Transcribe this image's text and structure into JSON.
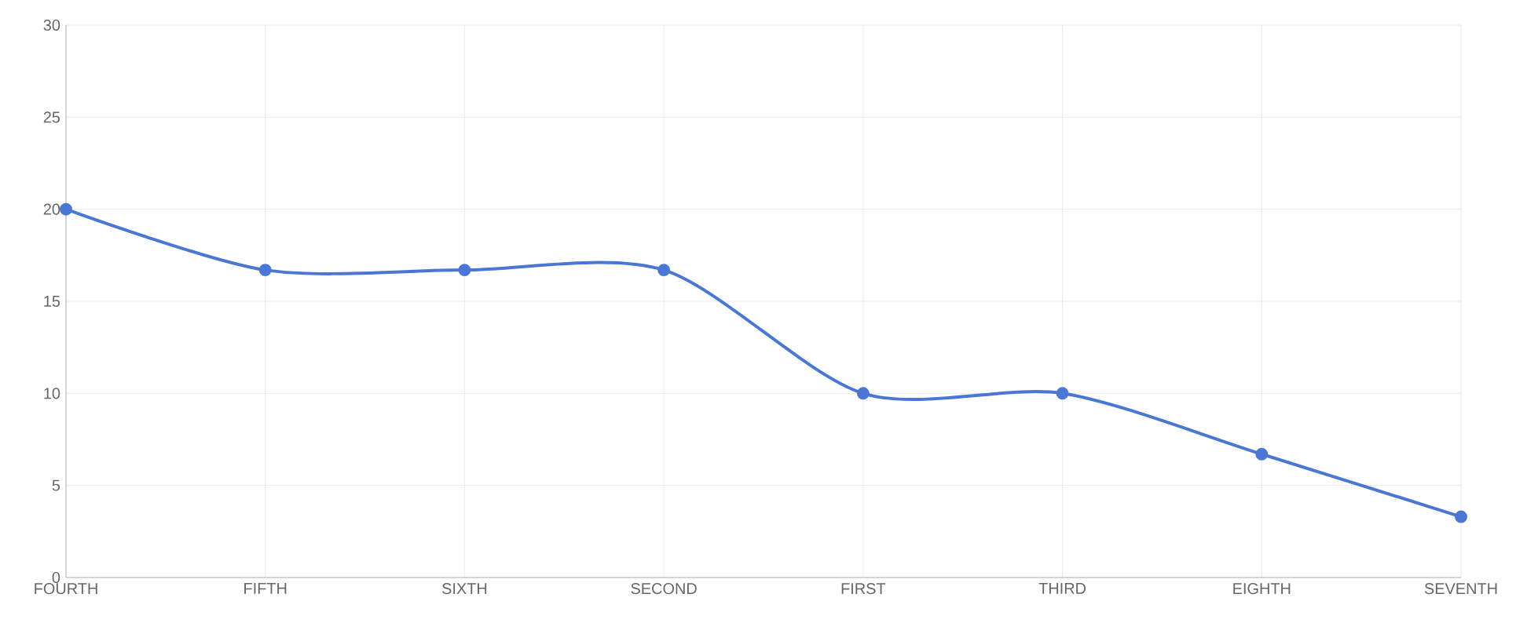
{
  "chart_data": {
    "type": "line",
    "categories": [
      "FOURTH",
      "FIFTH",
      "SIXTH",
      "SECOND",
      "FIRST",
      "THIRD",
      "EIGHTH",
      "SEVENTH"
    ],
    "series": [
      {
        "color": "#4a77d4",
        "values": [
          20,
          16.7,
          16.7,
          16.7,
          10,
          10,
          6.7,
          3.3
        ]
      }
    ],
    "ylim": [
      0,
      30
    ],
    "yticks": [
      0,
      5,
      10,
      15,
      20,
      25,
      30
    ],
    "grid": true,
    "marker": "circle",
    "line_style": "solid"
  }
}
